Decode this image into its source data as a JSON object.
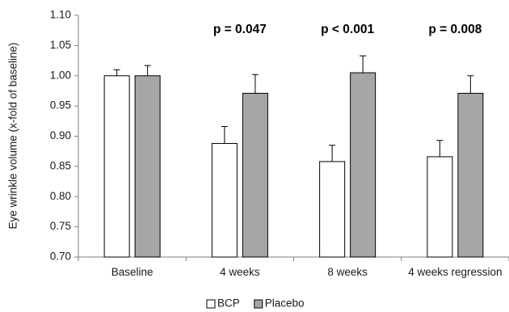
{
  "chart_data": {
    "type": "bar",
    "ylabel": "Eye wrinkle volume (x-fold of baseline)",
    "xlabel": "",
    "ylim": [
      0.7,
      1.1
    ],
    "ytick_step": 0.05,
    "ytick_labels": [
      "0.70",
      "0.75",
      "0.80",
      "0.85",
      "0.90",
      "0.95",
      "1.00",
      "1.05",
      "1.10"
    ],
    "grid": false,
    "legend_position": "bottom-center",
    "categories": [
      "Baseline",
      "4 weeks",
      "8 weeks",
      "4 weeks regression"
    ],
    "series": [
      {
        "name": "BCP",
        "color": "#ffffff",
        "values": [
          1.0,
          0.888,
          0.858,
          0.866
        ],
        "errors": [
          0.01,
          0.028,
          0.027,
          0.027
        ]
      },
      {
        "name": "Placebo",
        "color": "#a6a6a6",
        "values": [
          1.0,
          0.971,
          1.005,
          0.971
        ],
        "errors": [
          0.017,
          0.031,
          0.028,
          0.029
        ]
      }
    ],
    "annotations": [
      "",
      "p = 0.047",
      "p < 0.001",
      "p = 0.008"
    ]
  }
}
